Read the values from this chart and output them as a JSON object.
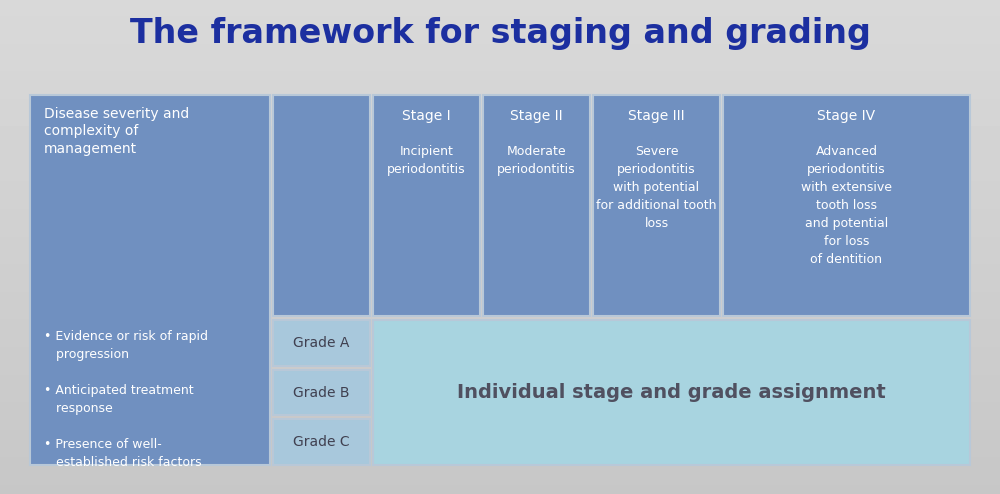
{
  "title": "The framework for staging and grading",
  "title_color": "#1c2fa0",
  "title_fontsize": 24,
  "box_blue": "#7090c0",
  "box_grade": "#a8c8dc",
  "box_assign": "#a8d4e0",
  "box_edge": "#b8c8d8",
  "left_box_text": "Disease severity and\ncomplexity of\nmanagement",
  "left_box_bottom_text": "• Evidence or risk of rapid\n   progression\n\n• Anticipated treatment\n   response\n\n• Presence of well-\n   established risk factors",
  "stage_labels": [
    "Stage I",
    "Stage II",
    "Stage III",
    "Stage IV"
  ],
  "stage_subtexts": [
    "Incipient\nperiodontitis",
    "Moderate\nperiodontitis",
    "Severe\nperiodontitis\nwith potential\nfor additional tooth\nloss",
    "Advanced\nperiodontitis\nwith extensive\ntooth loss\nand potential\nfor loss\nof dentition"
  ],
  "grade_labels": [
    "Grade A",
    "Grade B",
    "Grade C"
  ],
  "assignment_text": "Individual stage and grade assignment",
  "text_white": "#ffffff",
  "text_grade": "#404050",
  "text_assign": "#505060"
}
